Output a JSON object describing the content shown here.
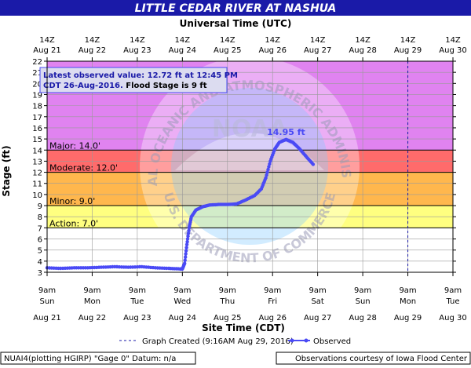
{
  "header": {
    "title": "LITTLE CEDAR RIVER AT NASHUA",
    "top_axis_title": "Universal Time (UTC)"
  },
  "chart_data": {
    "type": "line",
    "ylabel": "Stage (ft)",
    "xlabel": "Site Time (CDT)",
    "ylim": [
      3,
      22
    ],
    "ytick_step": 1,
    "xlim_days": [
      "Aug 21 09:00",
      "Aug 30 09:00"
    ],
    "grid": true,
    "bottom_ticks": [
      {
        "time": "9am",
        "dow": "Sun",
        "date": "Aug 21"
      },
      {
        "time": "9am",
        "dow": "Mon",
        "date": "Aug 22"
      },
      {
        "time": "9am",
        "dow": "Tue",
        "date": "Aug 23"
      },
      {
        "time": "9am",
        "dow": "Wed",
        "date": "Aug 24"
      },
      {
        "time": "9am",
        "dow": "Thu",
        "date": "Aug 25"
      },
      {
        "time": "9am",
        "dow": "Fri",
        "date": "Aug 26"
      },
      {
        "time": "9am",
        "dow": "Sat",
        "date": "Aug 27"
      },
      {
        "time": "9am",
        "dow": "Sun",
        "date": "Aug 28"
      },
      {
        "time": "9am",
        "dow": "Mon",
        "date": "Aug 29"
      },
      {
        "time": "9am",
        "dow": "Tue",
        "date": "Aug 30"
      }
    ],
    "top_ticks": [
      {
        "time": "14Z",
        "date": "Aug 21"
      },
      {
        "time": "14Z",
        "date": "Aug 22"
      },
      {
        "time": "14Z",
        "date": "Aug 23"
      },
      {
        "time": "14Z",
        "date": "Aug 24"
      },
      {
        "time": "14Z",
        "date": "Aug 25"
      },
      {
        "time": "14Z",
        "date": "Aug 26"
      },
      {
        "time": "14Z",
        "date": "Aug 27"
      },
      {
        "time": "14Z",
        "date": "Aug 28"
      },
      {
        "time": "14Z",
        "date": "Aug 29"
      },
      {
        "time": "14Z",
        "date": "Aug 30"
      }
    ],
    "flood_categories": [
      {
        "name": "Major",
        "label": "Major: 14.0'",
        "from": 14,
        "to": 22,
        "color": "#e083f0"
      },
      {
        "name": "Moderate",
        "label": "Moderate: 12.0'",
        "from": 12,
        "to": 14,
        "color": "#ff6b6b"
      },
      {
        "name": "Minor",
        "label": "Minor: 9.0'",
        "from": 9,
        "to": 12,
        "color": "#ffb74d"
      },
      {
        "name": "Action",
        "label": "Action: 7.0'",
        "from": 7,
        "to": 9,
        "color": "#ffff80"
      }
    ],
    "below_action_color": "#ffffff",
    "graph_created_day": 8.0,
    "series": [
      {
        "name": "Observed",
        "color": "#4a4af5",
        "points": [
          [
            0.0,
            3.4
          ],
          [
            0.3,
            3.35
          ],
          [
            0.6,
            3.4
          ],
          [
            0.9,
            3.4
          ],
          [
            1.2,
            3.45
          ],
          [
            1.5,
            3.5
          ],
          [
            1.8,
            3.45
          ],
          [
            2.1,
            3.5
          ],
          [
            2.4,
            3.4
          ],
          [
            2.7,
            3.35
          ],
          [
            2.95,
            3.3
          ],
          [
            3.0,
            3.3
          ],
          [
            3.05,
            3.8
          ],
          [
            3.1,
            5.5
          ],
          [
            3.15,
            7.0
          ],
          [
            3.2,
            8.0
          ],
          [
            3.3,
            8.6
          ],
          [
            3.45,
            8.9
          ],
          [
            3.6,
            9.05
          ],
          [
            3.8,
            9.1
          ],
          [
            4.0,
            9.1
          ],
          [
            4.2,
            9.15
          ],
          [
            4.4,
            9.5
          ],
          [
            4.6,
            9.9
          ],
          [
            4.75,
            10.5
          ],
          [
            4.85,
            11.5
          ],
          [
            4.95,
            13.0
          ],
          [
            5.05,
            14.1
          ],
          [
            5.15,
            14.7
          ],
          [
            5.3,
            14.95
          ],
          [
            5.45,
            14.7
          ],
          [
            5.6,
            14.1
          ],
          [
            5.75,
            13.4
          ],
          [
            5.9,
            12.72
          ]
        ]
      }
    ],
    "annotations": [
      {
        "text": "14.95 ft",
        "x": 5.3,
        "y": 14.95
      }
    ],
    "info_box": {
      "line1": "Latest observed value: 12.72 ft at 12:45 PM",
      "line2_blue": "CDT 26-Aug-2016.",
      "line2_black": " Flood Stage is 9 ft"
    }
  },
  "legend": {
    "created_label": "Graph Created (9:16AM Aug 29, 2016)",
    "observed_label": "Observed"
  },
  "footer": {
    "left": "NUAI4(plotting HGIRP) \"Gage 0\" Datum: n/a",
    "right": "Observations courtesy of Iowa Flood Center"
  },
  "watermark": {
    "org": "NATIONAL OCEANIC AND ATMOSPHERIC ADMINISTRATION",
    "dept": "U.S. DEPARTMENT OF COMMERCE",
    "logo": "NOAA"
  }
}
